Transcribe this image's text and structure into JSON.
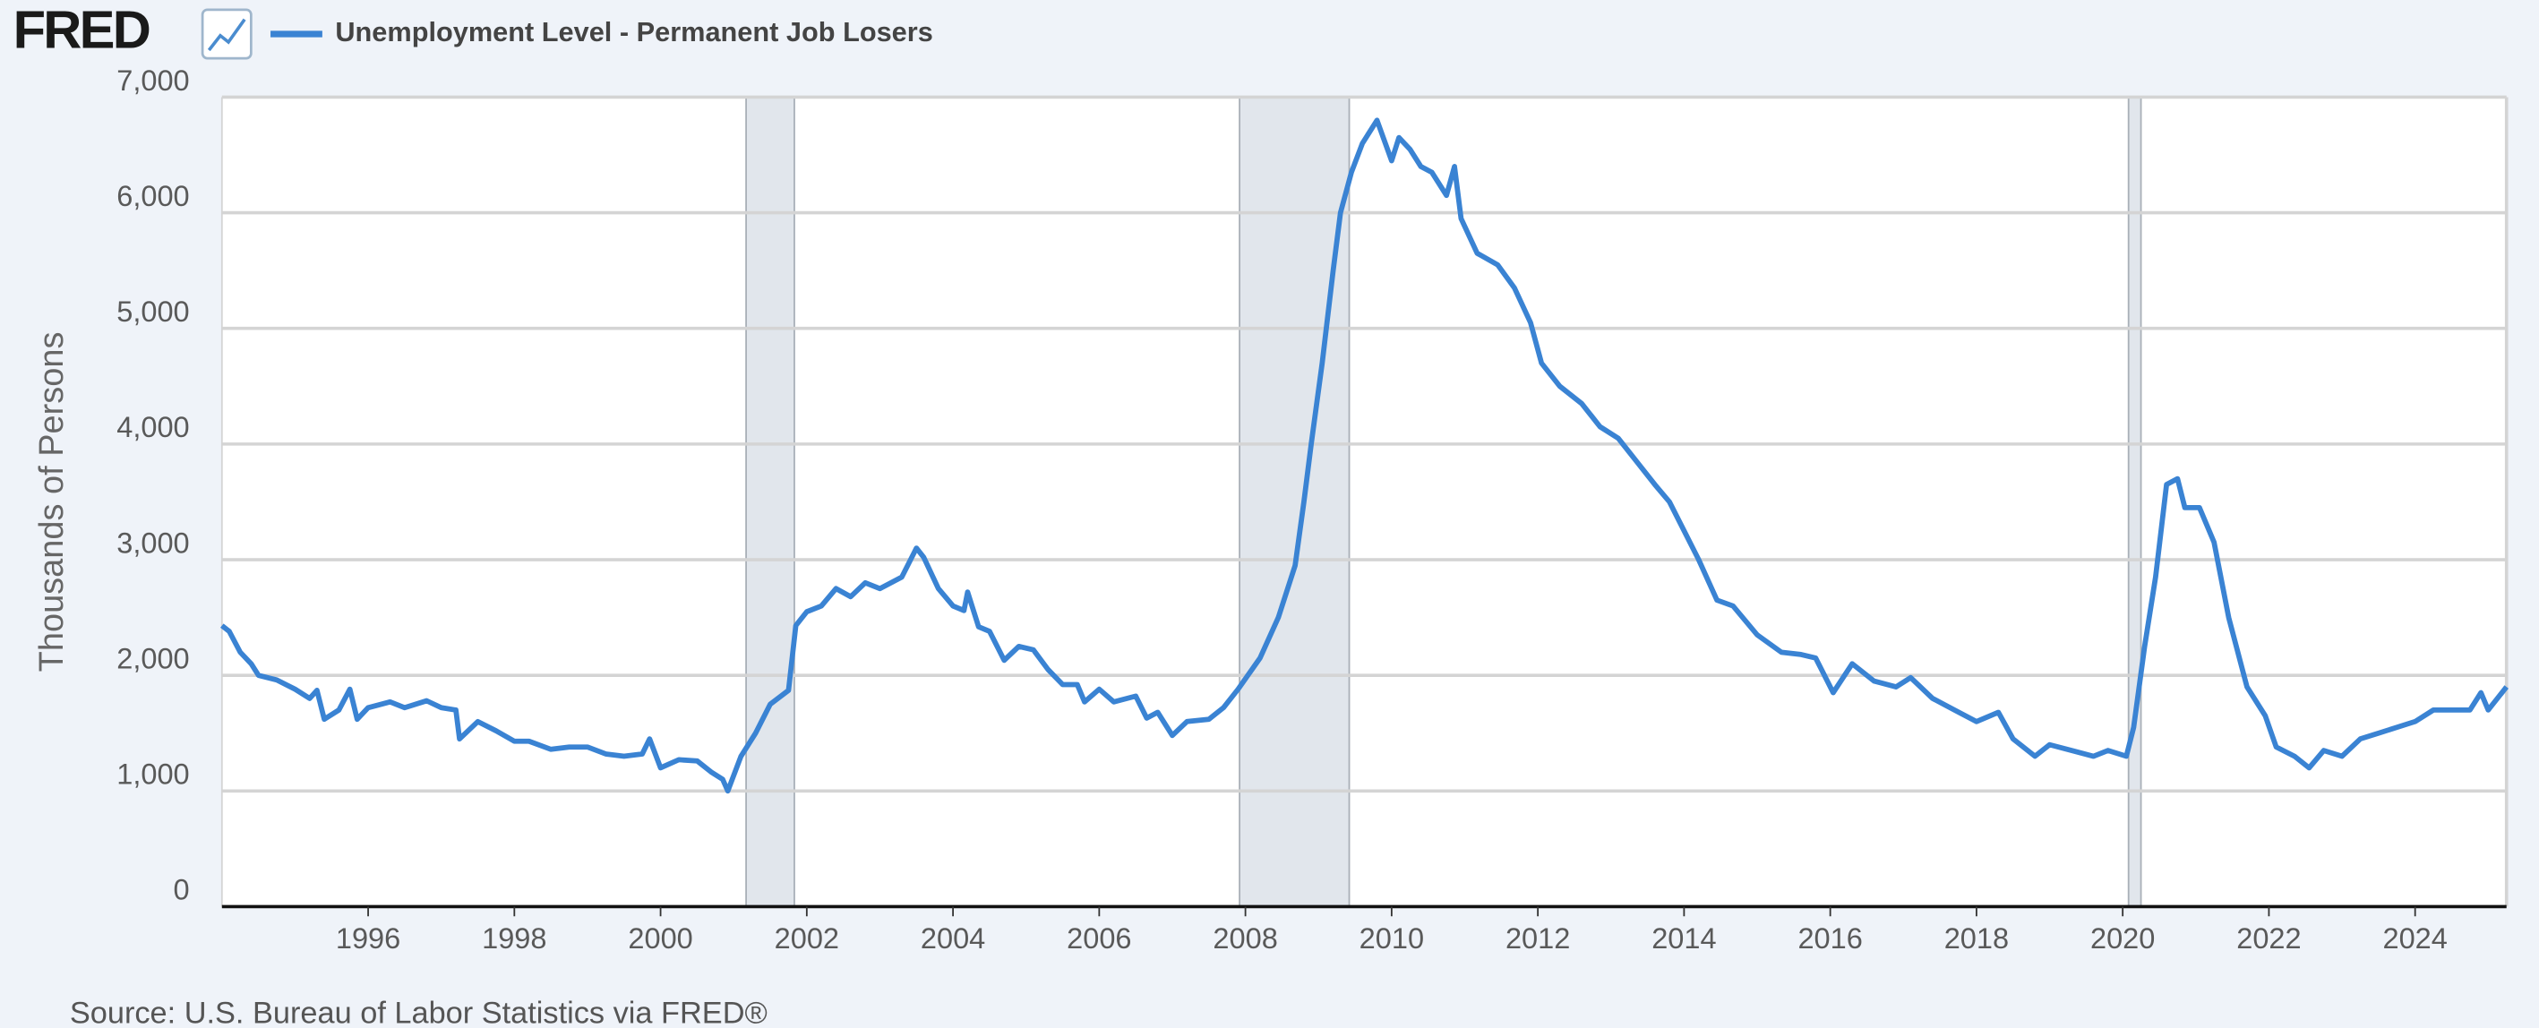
{
  "logo": "FRED",
  "source": "Source: U.S. Bureau of Labor Statistics via FRED®",
  "chart_data": {
    "type": "line",
    "y_label": "Thousands of Persons",
    "xlim": [
      1994.0,
      2025.25
    ],
    "ylim": [
      0,
      7000
    ],
    "xticks": [
      1996,
      1998,
      2000,
      2002,
      2004,
      2006,
      2008,
      2010,
      2012,
      2014,
      2016,
      2018,
      2020,
      2022,
      2024
    ],
    "yticks": [
      0,
      {
        "value": 1000,
        "label": "1,000"
      },
      {
        "value": 2000,
        "label": "2,000"
      },
      {
        "value": 3000,
        "label": "3,000"
      },
      {
        "value": 4000,
        "label": "4,000"
      },
      {
        "value": 5000,
        "label": "5,000"
      },
      {
        "value": 6000,
        "label": "6,000"
      },
      {
        "value": 7000,
        "label": "7,000"
      }
    ],
    "grid": true,
    "recessions": [
      [
        2001.17,
        2001.83
      ],
      [
        2007.92,
        2009.42
      ],
      [
        2020.08,
        2020.25
      ]
    ],
    "x": [
      1994.0,
      1994.1,
      1994.25,
      1994.4,
      1994.5,
      1994.75,
      1995.0,
      1995.2,
      1995.3,
      1995.4,
      1995.6,
      1995.75,
      1995.85,
      1996.0,
      1996.3,
      1996.5,
      1996.8,
      1997.0,
      1997.2,
      1997.25,
      1997.5,
      1997.75,
      1998.0,
      1998.2,
      1998.5,
      1998.75,
      1999.0,
      1999.25,
      1999.5,
      1999.75,
      1999.85,
      2000.0,
      2000.25,
      2000.5,
      2000.7,
      2000.85,
      2000.92,
      2001.1,
      2001.3,
      2001.5,
      2001.75,
      2001.85,
      2002.0,
      2002.2,
      2002.4,
      2002.6,
      2002.8,
      2003.0,
      2003.3,
      2003.5,
      2003.6,
      2003.8,
      2004.0,
      2004.15,
      2004.2,
      2004.35,
      2004.5,
      2004.7,
      2004.9,
      2005.1,
      2005.3,
      2005.5,
      2005.7,
      2005.8,
      2006.0,
      2006.2,
      2006.5,
      2006.65,
      2006.8,
      2007.0,
      2007.2,
      2007.5,
      2007.7,
      2007.9,
      2008.2,
      2008.45,
      2008.68,
      2008.8,
      2008.9,
      2009.05,
      2009.2,
      2009.3,
      2009.45,
      2009.6,
      2009.8,
      2010.0,
      2010.1,
      2010.25,
      2010.4,
      2010.55,
      2010.75,
      2010.86,
      2010.95,
      2011.17,
      2011.45,
      2011.68,
      2011.9,
      2012.05,
      2012.3,
      2012.6,
      2012.85,
      2013.1,
      2013.35,
      2013.6,
      2013.8,
      2014.0,
      2014.2,
      2014.45,
      2014.67,
      2015.0,
      2015.33,
      2015.6,
      2015.8,
      2016.04,
      2016.3,
      2016.6,
      2016.9,
      2017.1,
      2017.4,
      2017.7,
      2018.0,
      2018.3,
      2018.5,
      2018.8,
      2019.0,
      2019.3,
      2019.6,
      2019.8,
      2020.05,
      2020.15,
      2020.3,
      2020.45,
      2020.6,
      2020.75,
      2020.85,
      2021.05,
      2021.25,
      2021.45,
      2021.7,
      2021.95,
      2022.1,
      2022.35,
      2022.55,
      2022.75,
      2023.0,
      2023.25,
      2023.5,
      2023.75,
      2024.0,
      2024.25,
      2024.5,
      2024.75,
      2024.9,
      2025.0,
      2025.25
    ],
    "series": [
      {
        "name": "Unemployment Level - Permanent Job Losers",
        "color": "#3a83d3",
        "values": [
          2430,
          2380,
          2200,
          2100,
          2000,
          1960,
          1880,
          1800,
          1870,
          1620,
          1700,
          1880,
          1620,
          1720,
          1770,
          1720,
          1780,
          1720,
          1700,
          1450,
          1600,
          1520,
          1430,
          1430,
          1360,
          1380,
          1380,
          1320,
          1300,
          1320,
          1450,
          1200,
          1270,
          1260,
          1160,
          1100,
          1000,
          1300,
          1500,
          1750,
          1870,
          2430,
          2550,
          2600,
          2750,
          2680,
          2800,
          2750,
          2850,
          3100,
          3020,
          2750,
          2600,
          2560,
          2720,
          2420,
          2380,
          2130,
          2250,
          2220,
          2050,
          1920,
          1920,
          1770,
          1880,
          1770,
          1820,
          1630,
          1680,
          1480,
          1600,
          1620,
          1720,
          1880,
          2150,
          2500,
          2950,
          3500,
          4000,
          4700,
          5500,
          6000,
          6350,
          6600,
          6800,
          6450,
          6650,
          6550,
          6400,
          6350,
          6150,
          6400,
          5950,
          5650,
          5550,
          5350,
          5050,
          4700,
          4500,
          4350,
          4150,
          4050,
          3850,
          3650,
          3500,
          3250,
          3000,
          2650,
          2600,
          2350,
          2200,
          2180,
          2150,
          1850,
          2100,
          1950,
          1900,
          1980,
          1800,
          1700,
          1600,
          1680,
          1450,
          1300,
          1400,
          1350,
          1300,
          1350,
          1300,
          1550,
          2250,
          2850,
          3650,
          3700,
          3450,
          3450,
          3150,
          2500,
          1900,
          1650,
          1380,
          1300,
          1200,
          1350,
          1300,
          1450,
          1500,
          1550,
          1600,
          1700,
          1700,
          1700,
          1850,
          1700,
          1900
        ]
      }
    ]
  }
}
